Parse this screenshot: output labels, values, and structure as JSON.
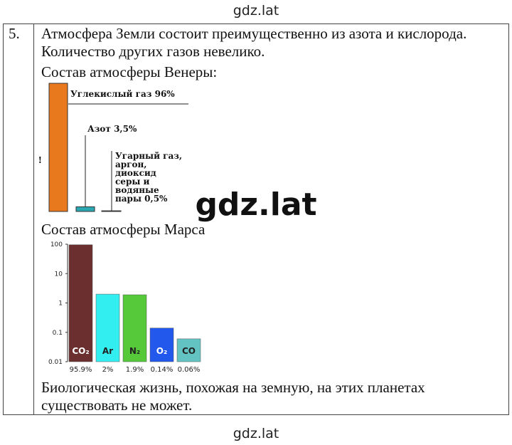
{
  "header": "gdz.lat",
  "watermark": "gdz.lat",
  "footer": "gdz.lat",
  "item": {
    "number": "5.",
    "intro": "Атмосфера Земли состоит преимущественно из азота и кислорода. Количество других газов невелико.",
    "venus_heading": "Состав атмосферы Венеры:",
    "mars_heading": "Состав атмосферы Марса",
    "conclusion": "Биологическая жизнь, похожая на земную, на этих планетах существовать не может."
  },
  "chart_data": [
    {
      "type": "bar",
      "categories": [
        "Углекислый газ",
        "Азот",
        "Угарный газ, аргон, диоксид серы и водяные пары"
      ],
      "values": [
        96,
        3.5,
        0.5
      ],
      "value_labels": [
        "96%",
        "3,5%",
        "0,5%"
      ],
      "colors": [
        "#e8791d",
        "#2aa7b0",
        "#ffffff"
      ],
      "annotation": "!"
    },
    {
      "type": "bar",
      "log_scale": true,
      "categories": [
        "CO₂",
        "Ar",
        "N₂",
        "O₂",
        "CO"
      ],
      "values": [
        95.9,
        2,
        1.9,
        0.14,
        0.06
      ],
      "value_labels": [
        "95.9%",
        "2%",
        "1.9%",
        "0.14%",
        "0.06%"
      ],
      "colors": [
        "#6b2f2f",
        "#33eef0",
        "#55c93a",
        "#2358ec",
        "#63c3c3"
      ],
      "ylim": [
        0.01,
        100
      ],
      "yticks": [
        0.01,
        0.1,
        1,
        10,
        100
      ]
    }
  ]
}
